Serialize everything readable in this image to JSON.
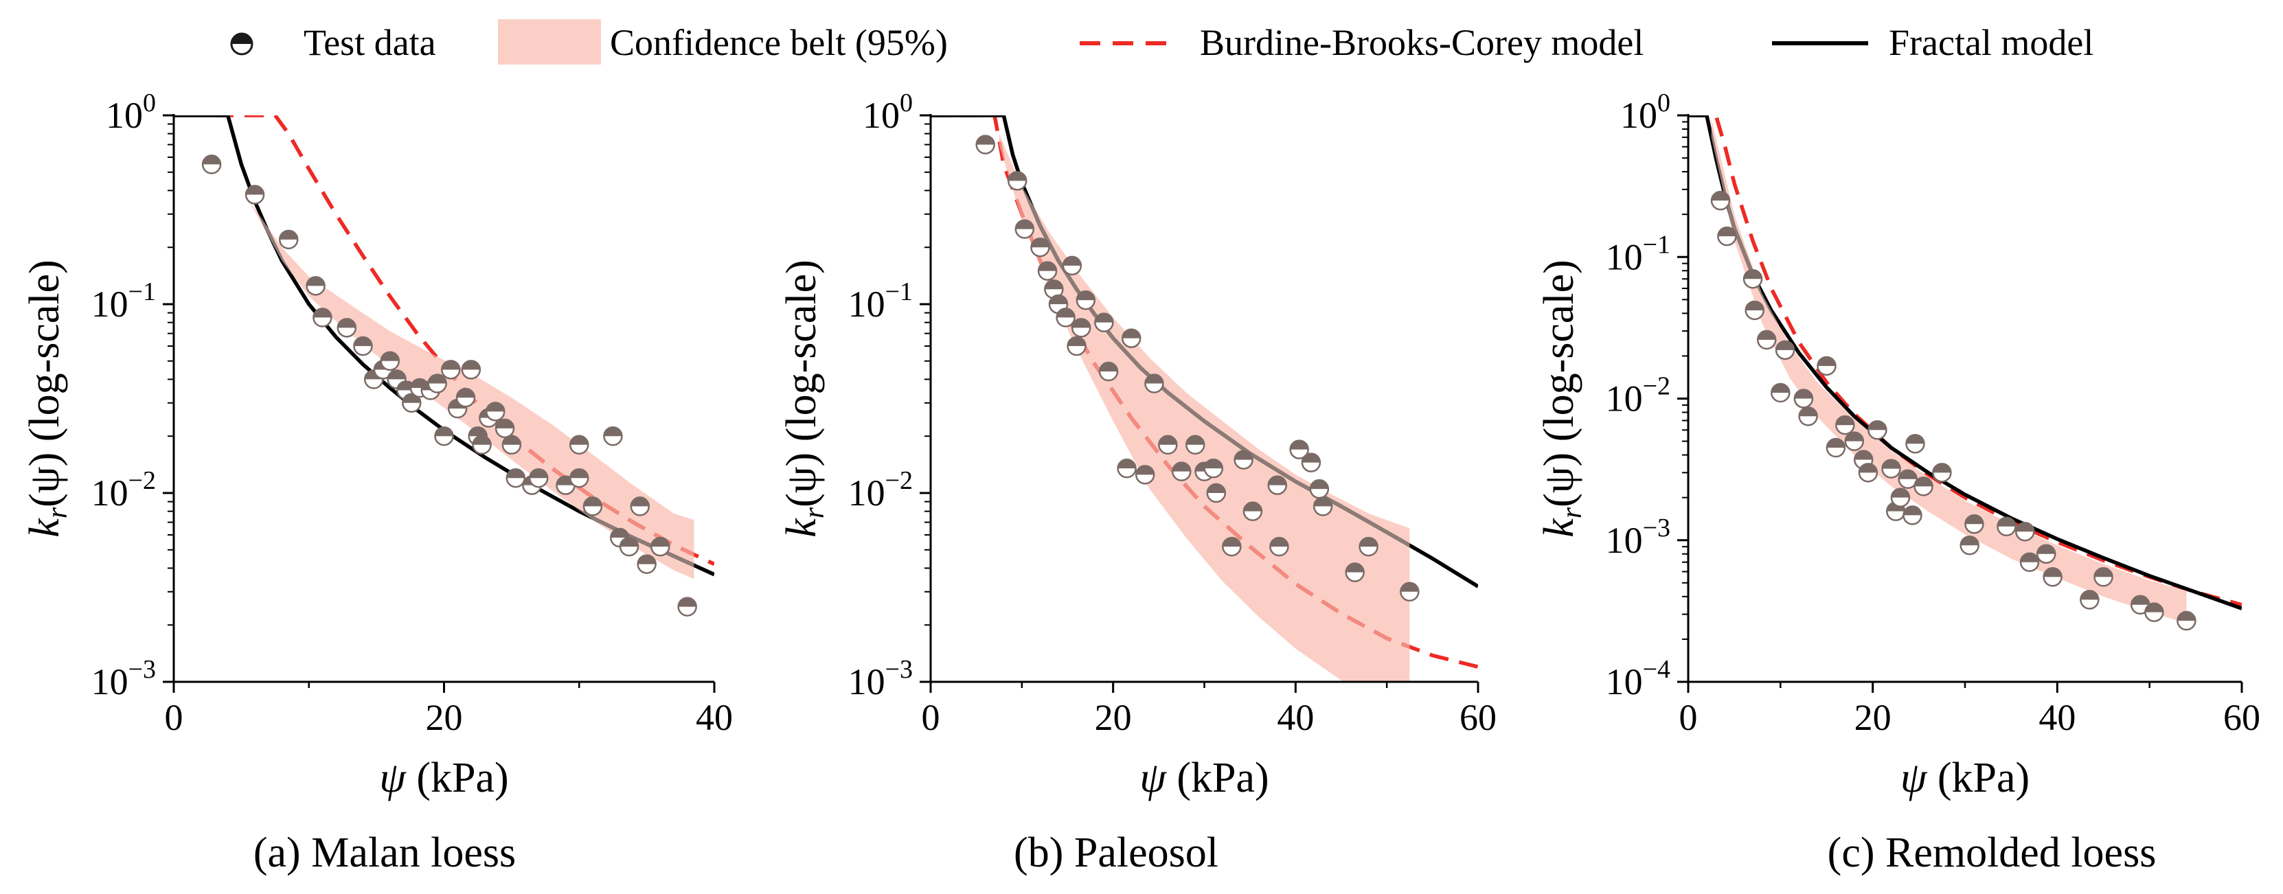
{
  "legend": {
    "items": [
      {
        "key": "test",
        "label": "Test data"
      },
      {
        "key": "band",
        "label": "Confidence belt (95%)"
      },
      {
        "key": "bbc",
        "label": "Burdine-Brooks-Corey model"
      },
      {
        "key": "fractal",
        "label": "Fractal model"
      }
    ]
  },
  "colors": {
    "band": "#fbcfc6",
    "bbc": "#ee2a24",
    "fractal": "#000000",
    "overlay": "#8c7b76",
    "marker_dark": "#1a1a1a"
  },
  "chart_data": [
    {
      "type": "scatter",
      "caption": "(a) Malan loess",
      "xlabel_var": "ψ",
      "xlabel_unit": " (kPa)",
      "ylabel_k": "k",
      "ylabel_sub": "r",
      "ylabel_mid": "(ψ) (log-scale)",
      "xlim": [
        0,
        40
      ],
      "xticks": [
        "0",
        "20",
        "40"
      ],
      "ylim_exp": [
        -3,
        0
      ],
      "yticks_exp": [
        "-3",
        "-2",
        "-1",
        "0"
      ],
      "band": {
        "x": [
          5.5,
          8,
          10,
          13,
          16,
          19,
          22,
          25,
          28,
          31,
          34,
          37,
          38.5
        ],
        "upper": [
          0.36,
          0.2,
          0.14,
          0.1,
          0.072,
          0.055,
          0.043,
          0.032,
          0.023,
          0.016,
          0.011,
          0.0078,
          0.0072
        ],
        "lower": [
          0.36,
          0.17,
          0.11,
          0.07,
          0.047,
          0.032,
          0.022,
          0.015,
          0.0103,
          0.0072,
          0.0052,
          0.0039,
          0.0035
        ]
      },
      "band_end": 38.5,
      "bbc": {
        "x": [
          3,
          7.5,
          8.5,
          10,
          12,
          14,
          16,
          18,
          20,
          22,
          25,
          28,
          31,
          34,
          37,
          40
        ],
        "y": [
          1,
          1,
          0.8,
          0.52,
          0.3,
          0.18,
          0.11,
          0.07,
          0.047,
          0.032,
          0.02,
          0.0135,
          0.0095,
          0.007,
          0.0053,
          0.0042
        ]
      },
      "fractal": {
        "x": [
          0,
          4,
          5,
          6,
          7,
          8,
          10,
          12,
          14,
          16,
          18,
          20,
          23,
          26,
          30,
          34,
          38,
          40
        ],
        "y": [
          1,
          1,
          0.55,
          0.35,
          0.24,
          0.17,
          0.1,
          0.067,
          0.048,
          0.036,
          0.0275,
          0.0215,
          0.0155,
          0.0115,
          0.008,
          0.0058,
          0.0043,
          0.0037
        ]
      },
      "points": [
        {
          "x": 2.8,
          "y": 0.55
        },
        {
          "x": 6,
          "y": 0.38
        },
        {
          "x": 8.5,
          "y": 0.22
        },
        {
          "x": 10.5,
          "y": 0.125
        },
        {
          "x": 11,
          "y": 0.085
        },
        {
          "x": 12.8,
          "y": 0.075
        },
        {
          "x": 14,
          "y": 0.06
        },
        {
          "x": 14.8,
          "y": 0.04
        },
        {
          "x": 15.5,
          "y": 0.045
        },
        {
          "x": 16,
          "y": 0.05
        },
        {
          "x": 16.5,
          "y": 0.04
        },
        {
          "x": 17.2,
          "y": 0.035
        },
        {
          "x": 17.6,
          "y": 0.03
        },
        {
          "x": 18.2,
          "y": 0.036
        },
        {
          "x": 19,
          "y": 0.035
        },
        {
          "x": 19.5,
          "y": 0.038
        },
        {
          "x": 20,
          "y": 0.02
        },
        {
          "x": 20.5,
          "y": 0.045
        },
        {
          "x": 21,
          "y": 0.028
        },
        {
          "x": 21.6,
          "y": 0.032
        },
        {
          "x": 22,
          "y": 0.045
        },
        {
          "x": 22.5,
          "y": 0.02
        },
        {
          "x": 22.8,
          "y": 0.018
        },
        {
          "x": 23.3,
          "y": 0.025
        },
        {
          "x": 23.8,
          "y": 0.027
        },
        {
          "x": 24.5,
          "y": 0.022
        },
        {
          "x": 25,
          "y": 0.018
        },
        {
          "x": 25.3,
          "y": 0.012
        },
        {
          "x": 26.5,
          "y": 0.011
        },
        {
          "x": 27,
          "y": 0.012
        },
        {
          "x": 29,
          "y": 0.011
        },
        {
          "x": 30,
          "y": 0.012
        },
        {
          "x": 30,
          "y": 0.018
        },
        {
          "x": 31,
          "y": 0.0085
        },
        {
          "x": 32.5,
          "y": 0.02
        },
        {
          "x": 33,
          "y": 0.0058
        },
        {
          "x": 33.7,
          "y": 0.0052
        },
        {
          "x": 34.5,
          "y": 0.0085
        },
        {
          "x": 35,
          "y": 0.0042
        },
        {
          "x": 36,
          "y": 0.0052
        },
        {
          "x": 38,
          "y": 0.0025
        }
      ]
    },
    {
      "type": "scatter",
      "caption": "(b) Paleosol",
      "xlabel_var": "ψ",
      "xlabel_unit": " (kPa)",
      "ylabel_k": "k",
      "ylabel_sub": "r",
      "ylabel_mid": "(ψ) (log-scale)",
      "xlim": [
        0,
        60
      ],
      "xticks": [
        "0",
        "20",
        "40",
        "60"
      ],
      "ylim_exp": [
        -3,
        0
      ],
      "yticks_exp": [
        "-3",
        "-2",
        "-1",
        "0"
      ],
      "band": {
        "x": [
          7.5,
          10,
          13,
          16,
          20,
          24,
          28,
          32,
          36,
          40,
          44,
          48,
          52.5
        ],
        "upper": [
          0.8,
          0.42,
          0.24,
          0.15,
          0.085,
          0.052,
          0.034,
          0.024,
          0.017,
          0.0125,
          0.0098,
          0.0078,
          0.0065
        ],
        "lower": [
          0.7,
          0.28,
          0.12,
          0.058,
          0.024,
          0.0105,
          0.0058,
          0.0034,
          0.0022,
          0.0015,
          0.0011,
          0.0008,
          0.00058
        ]
      },
      "band_end": 52.5,
      "bbc": {
        "x": [
          0,
          7,
          8,
          10,
          12,
          15,
          18,
          22,
          26,
          30,
          35,
          40,
          45,
          50,
          55,
          60
        ],
        "y": [
          1,
          1,
          0.55,
          0.3,
          0.17,
          0.085,
          0.048,
          0.025,
          0.014,
          0.0085,
          0.0052,
          0.0033,
          0.0023,
          0.0017,
          0.00138,
          0.0012
        ]
      },
      "fractal": {
        "x": [
          0,
          8,
          9,
          10,
          12,
          14,
          16,
          18,
          20,
          23,
          26,
          30,
          35,
          40,
          45,
          50,
          55,
          60
        ],
        "y": [
          1,
          1,
          0.62,
          0.44,
          0.26,
          0.17,
          0.12,
          0.088,
          0.066,
          0.046,
          0.034,
          0.024,
          0.0162,
          0.0115,
          0.0085,
          0.0062,
          0.0045,
          0.0032
        ]
      },
      "points": [
        {
          "x": 6,
          "y": 0.7
        },
        {
          "x": 9.5,
          "y": 0.45
        },
        {
          "x": 10.3,
          "y": 0.25
        },
        {
          "x": 12,
          "y": 0.2
        },
        {
          "x": 12.8,
          "y": 0.15
        },
        {
          "x": 13.5,
          "y": 0.12
        },
        {
          "x": 14,
          "y": 0.1
        },
        {
          "x": 14.8,
          "y": 0.085
        },
        {
          "x": 15.5,
          "y": 0.16
        },
        {
          "x": 16,
          "y": 0.06
        },
        {
          "x": 16.5,
          "y": 0.075
        },
        {
          "x": 17,
          "y": 0.105
        },
        {
          "x": 19,
          "y": 0.08
        },
        {
          "x": 19.5,
          "y": 0.044
        },
        {
          "x": 21.5,
          "y": 0.0135
        },
        {
          "x": 22,
          "y": 0.066
        },
        {
          "x": 23.5,
          "y": 0.0125
        },
        {
          "x": 24.5,
          "y": 0.038
        },
        {
          "x": 26,
          "y": 0.018
        },
        {
          "x": 27.5,
          "y": 0.013
        },
        {
          "x": 29,
          "y": 0.018
        },
        {
          "x": 30,
          "y": 0.013
        },
        {
          "x": 31,
          "y": 0.0135
        },
        {
          "x": 31.3,
          "y": 0.01
        },
        {
          "x": 33,
          "y": 0.0052
        },
        {
          "x": 34.3,
          "y": 0.015
        },
        {
          "x": 35.3,
          "y": 0.008
        },
        {
          "x": 38,
          "y": 0.011
        },
        {
          "x": 38.2,
          "y": 0.0052
        },
        {
          "x": 40.4,
          "y": 0.017
        },
        {
          "x": 41.7,
          "y": 0.0145
        },
        {
          "x": 42.6,
          "y": 0.0105
        },
        {
          "x": 43,
          "y": 0.0085
        },
        {
          "x": 46.5,
          "y": 0.0038
        },
        {
          "x": 48,
          "y": 0.0052
        },
        {
          "x": 52.5,
          "y": 0.003
        }
      ]
    },
    {
      "type": "scatter",
      "caption": "(c) Remolded loess",
      "xlabel_var": "ψ",
      "xlabel_unit": " (kPa)",
      "ylabel_k": "k",
      "ylabel_sub": "r",
      "ylabel_mid": "(ψ) (log-scale)",
      "xlim": [
        0,
        60
      ],
      "xticks": [
        "0",
        "20",
        "40",
        "60"
      ],
      "ylim_exp": [
        -4,
        0
      ],
      "yticks_exp": [
        "-4",
        "-3",
        "-2",
        "-1",
        "0"
      ],
      "band": {
        "x": [
          2.5,
          5,
          8,
          11,
          14,
          18,
          22,
          26,
          30,
          35,
          40,
          45,
          50,
          54
        ],
        "upper": [
          0.95,
          0.2,
          0.055,
          0.024,
          0.013,
          0.0072,
          0.0043,
          0.0028,
          0.0019,
          0.0013,
          0.00092,
          0.00068,
          0.00052,
          0.00044
        ],
        "lower": [
          0.7,
          0.13,
          0.034,
          0.014,
          0.0074,
          0.004,
          0.0024,
          0.0016,
          0.0011,
          0.00074,
          0.00054,
          0.0004,
          0.00031,
          0.00026
        ]
      },
      "band_end": 54,
      "bbc": {
        "x": [
          0,
          3,
          4,
          5,
          7,
          9,
          12,
          15,
          18,
          22,
          26,
          30,
          35,
          40,
          45,
          50,
          55,
          60
        ],
        "y": [
          1,
          1,
          0.6,
          0.33,
          0.13,
          0.06,
          0.025,
          0.013,
          0.0078,
          0.0045,
          0.0029,
          0.002,
          0.00135,
          0.00097,
          0.00072,
          0.00055,
          0.00043,
          0.00035
        ]
      },
      "fractal": {
        "x": [
          0,
          2,
          3,
          4,
          5,
          7,
          9,
          12,
          15,
          18,
          22,
          26,
          30,
          35,
          40,
          45,
          50,
          55,
          60
        ],
        "y": [
          1,
          1,
          0.5,
          0.27,
          0.16,
          0.075,
          0.042,
          0.021,
          0.012,
          0.0075,
          0.0045,
          0.003,
          0.0021,
          0.00143,
          0.00102,
          0.00075,
          0.00056,
          0.00043,
          0.00033
        ]
      },
      "points": [
        {
          "x": 3.5,
          "y": 0.25
        },
        {
          "x": 4.2,
          "y": 0.14
        },
        {
          "x": 7,
          "y": 0.07
        },
        {
          "x": 7.2,
          "y": 0.042
        },
        {
          "x": 8.5,
          "y": 0.026
        },
        {
          "x": 10,
          "y": 0.011
        },
        {
          "x": 10.5,
          "y": 0.022
        },
        {
          "x": 12.5,
          "y": 0.01
        },
        {
          "x": 13,
          "y": 0.0075
        },
        {
          "x": 15,
          "y": 0.017
        },
        {
          "x": 16,
          "y": 0.0045
        },
        {
          "x": 17,
          "y": 0.0065
        },
        {
          "x": 18,
          "y": 0.005
        },
        {
          "x": 19,
          "y": 0.0037
        },
        {
          "x": 19.5,
          "y": 0.003
        },
        {
          "x": 20.5,
          "y": 0.006
        },
        {
          "x": 22,
          "y": 0.0032
        },
        {
          "x": 22.5,
          "y": 0.0016
        },
        {
          "x": 23,
          "y": 0.002
        },
        {
          "x": 23.8,
          "y": 0.0027
        },
        {
          "x": 24.3,
          "y": 0.0015
        },
        {
          "x": 24.6,
          "y": 0.0048
        },
        {
          "x": 25.5,
          "y": 0.0024
        },
        {
          "x": 27.5,
          "y": 0.003
        },
        {
          "x": 30.5,
          "y": 0.00092
        },
        {
          "x": 31,
          "y": 0.0013
        },
        {
          "x": 34.5,
          "y": 0.00125
        },
        {
          "x": 36.5,
          "y": 0.00115
        },
        {
          "x": 37,
          "y": 0.0007
        },
        {
          "x": 38.8,
          "y": 0.0008
        },
        {
          "x": 39.5,
          "y": 0.00055
        },
        {
          "x": 43.5,
          "y": 0.00038
        },
        {
          "x": 45,
          "y": 0.00055
        },
        {
          "x": 49,
          "y": 0.00035
        },
        {
          "x": 50.5,
          "y": 0.00031
        },
        {
          "x": 54,
          "y": 0.00027
        }
      ]
    }
  ]
}
